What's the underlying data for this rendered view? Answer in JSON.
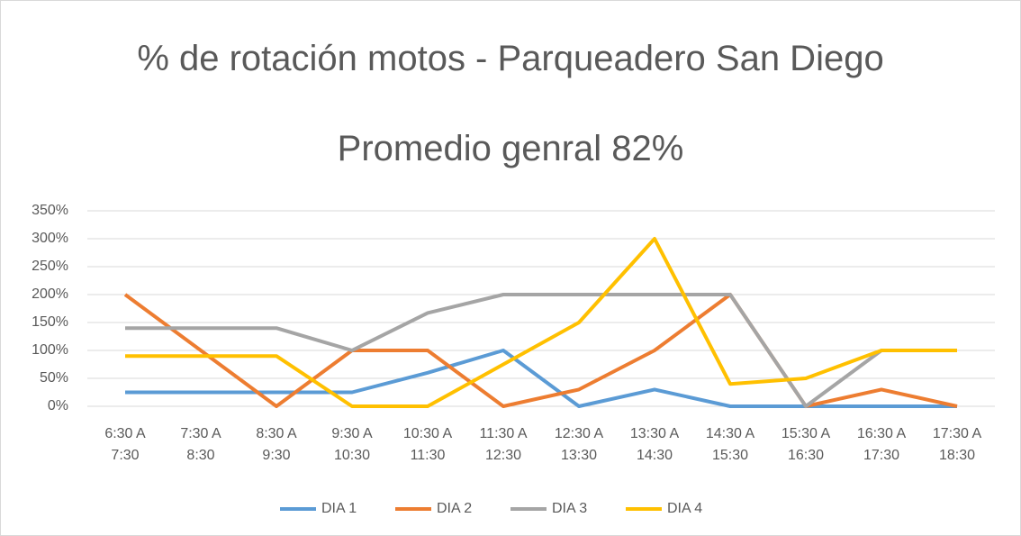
{
  "chart_data": {
    "type": "line",
    "title": "% de rotación motos - Parqueadero San Diego",
    "subtitle": "Promedio genral 82%",
    "categories": [
      "6:30 A 7:30",
      "7:30 A 8:30",
      "8:30 A 9:30",
      "9:30 A 10:30",
      "10:30 A 11:30",
      "11:30 A 12:30",
      "12:30 A 13:30",
      "13:30 A 14:30",
      "14:30 A 15:30",
      "15:30 A 16:30",
      "16:30 A 17:30",
      "17:30 A 18:30"
    ],
    "series": [
      {
        "name": "DIA 1",
        "color": "#5b9bd5",
        "values": [
          25,
          25,
          25,
          25,
          60,
          100,
          0,
          30,
          0,
          0,
          0,
          0
        ]
      },
      {
        "name": "DIA 2",
        "color": "#ed7d31",
        "values": [
          200,
          100,
          0,
          100,
          100,
          0,
          30,
          100,
          200,
          0,
          30,
          0
        ]
      },
      {
        "name": "DIA 3",
        "color": "#a5a5a5",
        "values": [
          140,
          140,
          140,
          100,
          167,
          200,
          200,
          200,
          200,
          0,
          100,
          100
        ]
      },
      {
        "name": "DIA 4",
        "color": "#ffc000",
        "values": [
          90,
          90,
          90,
          0,
          0,
          75,
          150,
          300,
          40,
          50,
          100,
          100
        ]
      }
    ],
    "ylim": [
      0,
      350
    ],
    "yticks": [
      {
        "value": 0,
        "label": "0%"
      },
      {
        "value": 50,
        "label": "50%"
      },
      {
        "value": 100,
        "label": "100%"
      },
      {
        "value": 150,
        "label": "150%"
      },
      {
        "value": 200,
        "label": "200%"
      },
      {
        "value": 250,
        "label": "250%"
      },
      {
        "value": 300,
        "label": "300%"
      },
      {
        "value": 350,
        "label": "350%"
      }
    ],
    "grid": true,
    "legend": "bottom"
  }
}
